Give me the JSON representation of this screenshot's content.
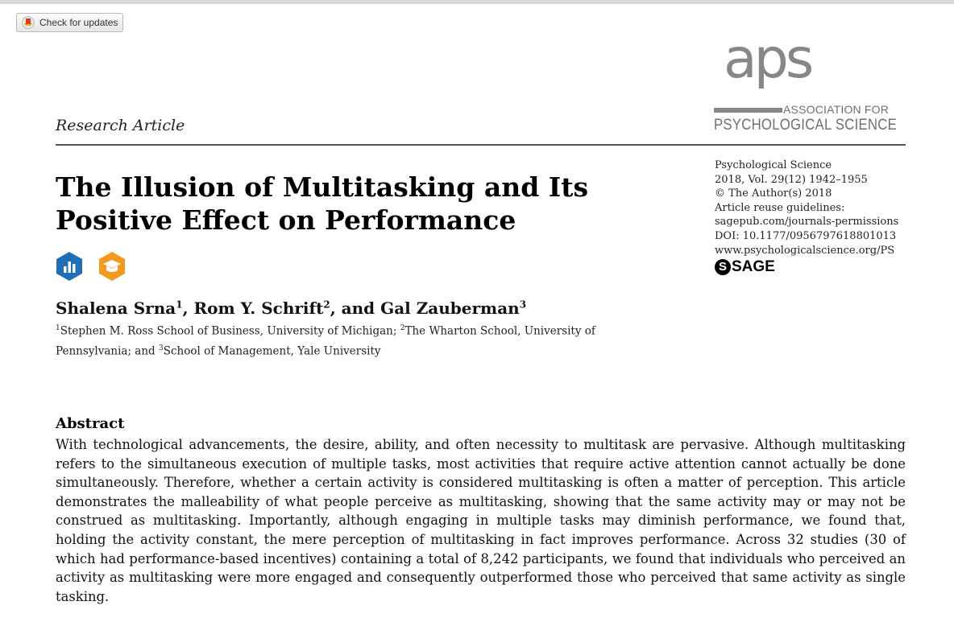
{
  "toolbar": {
    "check_updates_label": "Check for updates"
  },
  "logo": {
    "word": "aps",
    "line1": "ASSOCIATION FOR",
    "line2": "PSYCHOLOGICAL SCIENCE",
    "color": "#878787"
  },
  "article": {
    "type": "Research Article",
    "title": "The Illusion of Multitasking and Its Positive Effect on Performance"
  },
  "journal": {
    "name": "Psychological Science",
    "volume": "2018, Vol. 29(12) 1942–1955",
    "copyright": "© The Author(s) 2018",
    "reuse_label": "Article reuse guidelines:",
    "reuse_link": "sagepub.com/journals-permissions",
    "doi": "DOI: 10.1177/0956797618801013",
    "url": "www.psychologicalscience.org/PS",
    "publisher": "SAGE"
  },
  "badges": {
    "open_data_color": "#1f6fb6",
    "open_materials_color": "#f39a1e"
  },
  "authors": {
    "a1_name": "Shalena Srna",
    "a1_sup": "1",
    "a2_name": "Rom Y. Schrift",
    "a2_sup": "2",
    "a3_name": "Gal Zauberman",
    "a3_sup": "3",
    "sep1": ", ",
    "sep2": ", and "
  },
  "affiliations": {
    "sup1": "1",
    "aff1": "Stephen M. Ross School of Business, University of Michigan; ",
    "sup2": "2",
    "aff2": "The Wharton School, University of Pennsylvania; and ",
    "sup3": "3",
    "aff3": "School of Management, Yale University"
  },
  "abstract": {
    "heading": "Abstract",
    "text": "With technological advancements, the desire, ability, and often necessity to multitask are pervasive. Although multitasking refers to the simultaneous execution of multiple tasks, most activities that require active attention cannot actually be done simultaneously. Therefore, whether a certain activity is considered multitasking is often a matter of perception. This article demonstrates the malleability of what people perceive as multitasking, showing that the same activity may or may not be construed as multitasking. Importantly, although engaging in multiple tasks may diminish performance, we found that, holding the activity constant, the mere perception of multitasking in fact improves performance. Across 32 studies (30 of which had performance-based incentives) containing a total of 8,242 participants, we found that individuals who perceived an activity as multitasking were more engaged and consequently outperformed those who perceived that same activity as single tasking."
  }
}
